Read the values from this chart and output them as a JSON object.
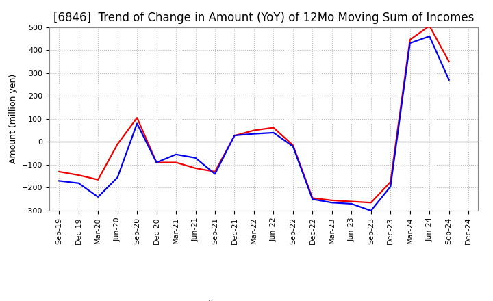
{
  "title": "[6846]  Trend of Change in Amount (YoY) of 12Mo Moving Sum of Incomes",
  "ylabel": "Amount (million yen)",
  "x_labels": [
    "Sep-19",
    "Dec-19",
    "Mar-20",
    "Jun-20",
    "Sep-20",
    "Dec-20",
    "Mar-21",
    "Jun-21",
    "Sep-21",
    "Dec-21",
    "Mar-22",
    "Jun-22",
    "Sep-22",
    "Dec-22",
    "Mar-23",
    "Jun-23",
    "Sep-23",
    "Dec-23",
    "Mar-24",
    "Jun-24",
    "Sep-24",
    "Dec-24"
  ],
  "ordinary_income": [
    -170,
    -180,
    -240,
    -155,
    80,
    -90,
    -55,
    -70,
    -140,
    28,
    35,
    40,
    -20,
    -250,
    -265,
    -270,
    -300,
    -195,
    430,
    460,
    270,
    null
  ],
  "net_income": [
    -130,
    -145,
    -165,
    -10,
    105,
    -90,
    -90,
    -115,
    -130,
    27,
    50,
    62,
    -15,
    -245,
    -255,
    -260,
    -265,
    -175,
    445,
    505,
    350,
    null
  ],
  "ylim": [
    -300,
    500
  ],
  "yticks": [
    -300,
    -200,
    -100,
    0,
    100,
    200,
    300,
    400,
    500
  ],
  "ordinary_color": "#0000ee",
  "net_color": "#ee0000",
  "line_width": 1.6,
  "bg_color": "#ffffff",
  "grid_color": "#bbbbbb",
  "title_fontsize": 12,
  "label_fontsize": 9,
  "tick_fontsize": 8,
  "legend_fontsize": 9
}
